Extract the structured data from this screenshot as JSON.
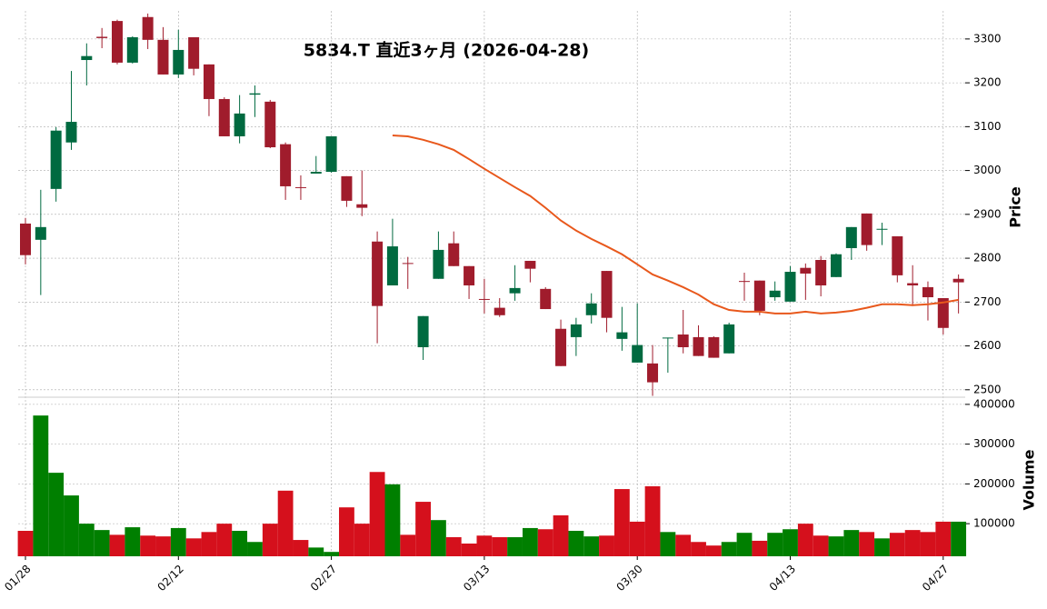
{
  "chart_data": {
    "type": "candlestick",
    "title": "5834.T  直近3ヶ月  (2026-04-28)",
    "categories": [
      "01/28",
      null,
      null,
      null,
      null,
      null,
      null,
      null,
      null,
      null,
      "02/12",
      null,
      null,
      null,
      null,
      null,
      null,
      null,
      null,
      null,
      "02/27",
      null,
      null,
      null,
      null,
      null,
      null,
      null,
      null,
      null,
      "03/13",
      null,
      null,
      null,
      null,
      null,
      null,
      null,
      null,
      null,
      "03/30",
      null,
      null,
      null,
      null,
      null,
      null,
      null,
      null,
      null,
      "04/13",
      null,
      null,
      null,
      null,
      null,
      null,
      null,
      null,
      null,
      "04/27",
      null
    ],
    "open": [
      2879,
      2842,
      2958,
      3064,
      3252,
      3305,
      3341,
      3246,
      3350,
      3298,
      3219,
      3304,
      3242,
      3163,
      3078,
      3173,
      3157,
      3060,
      2962,
      2993,
      2997,
      2987,
      2923,
      2838,
      2738,
      2789,
      2597,
      2753,
      2834,
      2782,
      2707,
      2687,
      2720,
      2794,
      2730,
      2639,
      2620,
      2670,
      2771,
      2616,
      2562,
      2560,
      2617,
      2626,
      2620,
      2620,
      2583,
      2748,
      2749,
      2711,
      2701,
      2778,
      2796,
      2757,
      2823,
      2902,
      2865,
      2850,
      2743,
      2734,
      2709,
      2753
    ],
    "high": [
      2892,
      2956,
      3099,
      3227,
      3290,
      3325,
      3344,
      3306,
      3358,
      3327,
      3321,
      3304,
      3242,
      3167,
      3172,
      3194,
      3161,
      3064,
      2989,
      3033,
      3078,
      2987,
      3000,
      2861,
      2890,
      2803,
      2668,
      2861,
      2861,
      2782,
      2753,
      2709,
      2784,
      2794,
      2734,
      2660,
      2664,
      2720,
      2771,
      2689,
      2697,
      2602,
      2619,
      2682,
      2647,
      2622,
      2653,
      2767,
      2749,
      2747,
      2782,
      2788,
      2805,
      2811,
      2871,
      2902,
      2881,
      2850,
      2784,
      2747,
      2709,
      2763
    ],
    "low": [
      2786,
      2716,
      2929,
      3047,
      3194,
      3279,
      3242,
      3244,
      3277,
      3219,
      3211,
      3217,
      3124,
      3078,
      3062,
      3122,
      3051,
      2933,
      2933,
      2993,
      2995,
      2917,
      2896,
      2606,
      2738,
      2730,
      2568,
      2753,
      2782,
      2707,
      2674,
      2666,
      2703,
      2745,
      2684,
      2554,
      2577,
      2651,
      2631,
      2589,
      2562,
      2486,
      2539,
      2583,
      2577,
      2573,
      2583,
      2703,
      2670,
      2703,
      2701,
      2705,
      2713,
      2757,
      2796,
      2817,
      2830,
      2745,
      2691,
      2658,
      2626,
      2674
    ],
    "close": [
      2807,
      2871,
      3091,
      3111,
      3261,
      3302,
      3246,
      3304,
      3298,
      3219,
      3275,
      3232,
      3163,
      3078,
      3130,
      3176,
      3053,
      2964,
      2960,
      2997,
      3078,
      2931,
      2915,
      2691,
      2827,
      2787,
      2668,
      2819,
      2782,
      2738,
      2705,
      2670,
      2732,
      2776,
      2684,
      2554,
      2649,
      2697,
      2664,
      2631,
      2602,
      2517,
      2619,
      2597,
      2577,
      2573,
      2649,
      2746,
      2680,
      2726,
      2769,
      2765,
      2738,
      2809,
      2871,
      2830,
      2867,
      2761,
      2738,
      2711,
      2641,
      2745
    ],
    "up_color": "#006a40",
    "down_color": "#a01c2c",
    "ma": {
      "color": "#e8581c",
      "values": [
        null,
        null,
        null,
        null,
        null,
        null,
        null,
        null,
        null,
        null,
        null,
        null,
        null,
        null,
        null,
        null,
        null,
        null,
        null,
        null,
        null,
        null,
        null,
        null,
        3080,
        3078,
        3070,
        3060,
        3047,
        3026,
        3004,
        2983,
        2962,
        2942,
        2915,
        2886,
        2863,
        2844,
        2827,
        2809,
        2786,
        2763,
        2749,
        2734,
        2717,
        2695,
        2682,
        2678,
        2678,
        2674,
        2674,
        2678,
        2674,
        2676,
        2680,
        2687,
        2695,
        2695,
        2693,
        2695,
        2699,
        2705
      ]
    },
    "ylim": [
      2483,
      3364
    ],
    "yticks": [
      2500,
      2600,
      2700,
      2800,
      2900,
      3000,
      3100,
      3200,
      3300
    ],
    "ylabel": "Price",
    "grid": true,
    "volume": {
      "values": [
        82000,
        372000,
        228000,
        171000,
        100000,
        84000,
        72000,
        91000,
        70000,
        68000,
        89000,
        63000,
        79000,
        100000,
        82000,
        54000,
        100000,
        183000,
        59000,
        40000,
        29000,
        141000,
        100000,
        230000,
        199000,
        72000,
        155000,
        109000,
        66000,
        50000,
        70000,
        66000,
        66000,
        89000,
        86000,
        121000,
        82000,
        68000,
        70000,
        187000,
        105000,
        194000,
        79000,
        72000,
        54000,
        45000,
        54000,
        77000,
        57000,
        77000,
        86000,
        100000,
        70000,
        68000,
        84000,
        79000,
        63000,
        77000,
        84000,
        79000,
        105000,
        105000
      ],
      "up_color": "#007f00",
      "down_color": "#d5101c",
      "ylim": [
        18000,
        418000
      ],
      "yticks": [
        100000,
        200000,
        300000,
        400000
      ],
      "ylabel": "Volume"
    }
  }
}
